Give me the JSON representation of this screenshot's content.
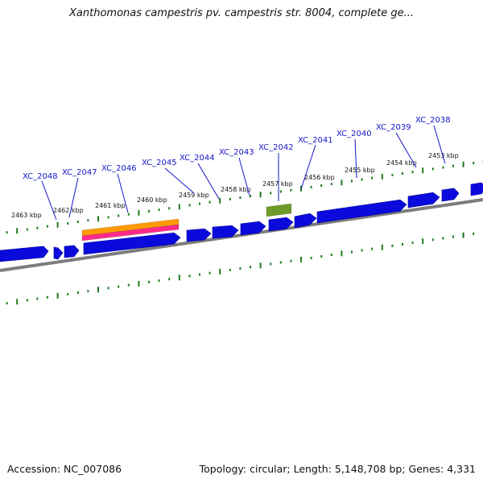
{
  "title": "Xanthomonas campestris pv. campestris str. 8004, complete ge...",
  "footer": {
    "accession": "Accession: NC_007086",
    "summary": "Topology: circular; Length: 5,148,708 bp; Genes: 4,331"
  },
  "colors": {
    "gene_label": "#1515c8",
    "gene_arrow": "#0a0adc",
    "backbone": "#7d7d7d",
    "tick": "#1e7a1e",
    "feature_orange": "#ff9a00",
    "feature_pink": "#ff2a8a",
    "feature_olive": "#6e9a2a"
  },
  "scale_ticks": [
    {
      "label": "2463 kbp"
    },
    {
      "label": "2462 kbp"
    },
    {
      "label": "2461 kbp"
    },
    {
      "label": "2460 kbp"
    },
    {
      "label": "2459 kbp"
    },
    {
      "label": "2458 kbp"
    },
    {
      "label": "2457 kbp"
    },
    {
      "label": "2456 kbp"
    },
    {
      "label": "2455 kbp"
    },
    {
      "label": "2454 kbp"
    },
    {
      "label": "2453 kbp"
    }
  ],
  "genes": [
    {
      "label": "XC_2048"
    },
    {
      "label": "XC_2047"
    },
    {
      "label": "XC_2046"
    },
    {
      "label": "XC_2045"
    },
    {
      "label": "XC_2044"
    },
    {
      "label": "XC_2043"
    },
    {
      "label": "XC_2042"
    },
    {
      "label": "XC_2041"
    },
    {
      "label": "XC_2040"
    },
    {
      "label": "XC_2039"
    },
    {
      "label": "XC_2038"
    }
  ]
}
